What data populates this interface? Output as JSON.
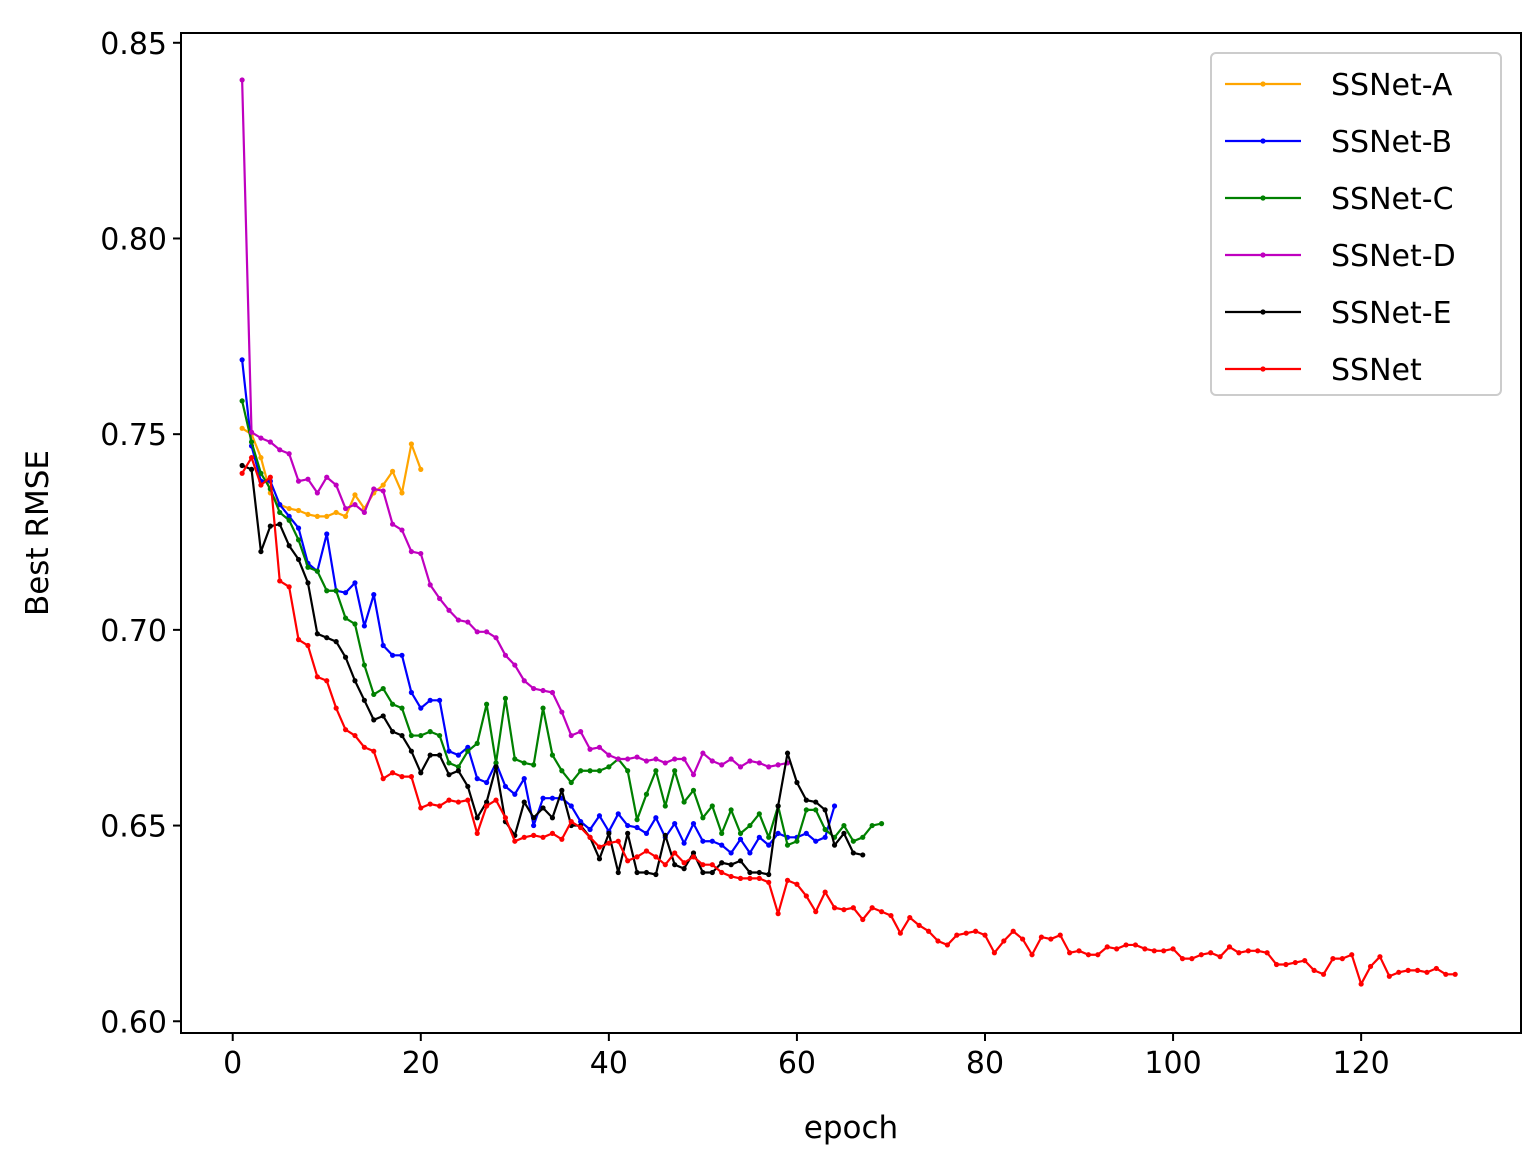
{
  "chart_data": {
    "type": "line",
    "title": "",
    "xlabel": "epoch",
    "ylabel": "Best RMSE",
    "xlim": [
      -5.5,
      137.0
    ],
    "ylim": [
      0.597,
      0.8525
    ],
    "xticks": [
      0,
      20,
      40,
      60,
      80,
      100,
      120
    ],
    "xtick_labels": [
      "0",
      "20",
      "40",
      "60",
      "80",
      "100",
      "120"
    ],
    "yticks": [
      0.6,
      0.65,
      0.7,
      0.75,
      0.8,
      0.85
    ],
    "ytick_labels": [
      "0.60",
      "0.65",
      "0.70",
      "0.75",
      "0.80",
      "0.85"
    ],
    "grid": false,
    "legend_position": "top-right",
    "series": [
      {
        "name": "SSNet-A",
        "color": "#ffa500",
        "x": [
          1,
          2,
          3,
          4,
          5,
          6,
          7,
          8,
          9,
          10,
          11,
          12,
          13,
          14,
          15,
          16,
          17,
          18,
          19,
          20
        ],
        "y": [
          0.7515,
          0.75,
          0.744,
          0.735,
          0.732,
          0.731,
          0.7305,
          0.7295,
          0.729,
          0.729,
          0.73,
          0.729,
          0.7345,
          0.731,
          0.735,
          0.737,
          0.7405,
          0.735,
          0.7475,
          0.741
        ]
      },
      {
        "name": "SSNet-B",
        "color": "#0000ff",
        "x": [
          1,
          2,
          3,
          4,
          5,
          6,
          7,
          8,
          9,
          10,
          11,
          12,
          13,
          14,
          15,
          16,
          17,
          18,
          19,
          20,
          21,
          22,
          23,
          24,
          25,
          26,
          27,
          28,
          29,
          30,
          31,
          32,
          33,
          34,
          35,
          36,
          37,
          38,
          39,
          40,
          41,
          42,
          43,
          44,
          45,
          46,
          47,
          48,
          49,
          50,
          51,
          52,
          53,
          54,
          55,
          56,
          57,
          58,
          59,
          60,
          61,
          62,
          63,
          64
        ],
        "y": [
          0.769,
          0.747,
          0.738,
          0.738,
          0.732,
          0.729,
          0.726,
          0.717,
          0.715,
          0.7245,
          0.71,
          0.7095,
          0.712,
          0.701,
          0.709,
          0.696,
          0.6935,
          0.6935,
          0.684,
          0.68,
          0.682,
          0.682,
          0.669,
          0.668,
          0.67,
          0.662,
          0.661,
          0.666,
          0.66,
          0.658,
          0.662,
          0.65,
          0.657,
          0.657,
          0.657,
          0.655,
          0.651,
          0.649,
          0.6525,
          0.6485,
          0.653,
          0.65,
          0.6495,
          0.648,
          0.652,
          0.647,
          0.6505,
          0.6455,
          0.6505,
          0.646,
          0.646,
          0.645,
          0.643,
          0.6465,
          0.643,
          0.647,
          0.645,
          0.648,
          0.647,
          0.647,
          0.648,
          0.646,
          0.647,
          0.655
        ]
      },
      {
        "name": "SSNet-C",
        "color": "#008000",
        "x": [
          1,
          2,
          3,
          4,
          5,
          6,
          7,
          8,
          9,
          10,
          11,
          12,
          13,
          14,
          15,
          16,
          17,
          18,
          19,
          20,
          21,
          22,
          23,
          24,
          25,
          26,
          27,
          28,
          29,
          30,
          31,
          32,
          33,
          34,
          35,
          36,
          37,
          38,
          39,
          40,
          41,
          42,
          43,
          44,
          45,
          46,
          47,
          48,
          49,
          50,
          51,
          52,
          53,
          54,
          55,
          56,
          57,
          58,
          59,
          60,
          61,
          62,
          63,
          64,
          65,
          66,
          67,
          68,
          69
        ],
        "y": [
          0.7585,
          0.748,
          0.74,
          0.736,
          0.73,
          0.728,
          0.723,
          0.716,
          0.715,
          0.71,
          0.71,
          0.703,
          0.7015,
          0.691,
          0.6835,
          0.685,
          0.681,
          0.68,
          0.673,
          0.673,
          0.674,
          0.673,
          0.666,
          0.665,
          0.669,
          0.671,
          0.681,
          0.666,
          0.6825,
          0.667,
          0.666,
          0.6655,
          0.68,
          0.668,
          0.664,
          0.661,
          0.664,
          0.664,
          0.664,
          0.665,
          0.667,
          0.664,
          0.6515,
          0.658,
          0.664,
          0.655,
          0.664,
          0.656,
          0.659,
          0.652,
          0.655,
          0.648,
          0.654,
          0.648,
          0.65,
          0.653,
          0.647,
          0.655,
          0.645,
          0.646,
          0.654,
          0.654,
          0.649,
          0.647,
          0.65,
          0.646,
          0.647,
          0.65,
          0.6505
        ]
      },
      {
        "name": "SSNet-D",
        "color": "#bf00bf",
        "x": [
          1,
          2,
          3,
          4,
          5,
          6,
          7,
          8,
          9,
          10,
          11,
          12,
          13,
          14,
          15,
          16,
          17,
          18,
          19,
          20,
          21,
          22,
          23,
          24,
          25,
          26,
          27,
          28,
          29,
          30,
          31,
          32,
          33,
          34,
          35,
          36,
          37,
          38,
          39,
          40,
          41,
          42,
          43,
          44,
          45,
          46,
          47,
          48,
          49,
          50,
          51,
          52,
          53,
          54,
          55,
          56,
          57,
          58,
          59
        ],
        "y": [
          0.8405,
          0.7505,
          0.749,
          0.748,
          0.746,
          0.745,
          0.738,
          0.7385,
          0.735,
          0.739,
          0.737,
          0.731,
          0.732,
          0.73,
          0.736,
          0.7355,
          0.727,
          0.7255,
          0.72,
          0.7195,
          0.7115,
          0.708,
          0.705,
          0.7025,
          0.702,
          0.6995,
          0.6995,
          0.698,
          0.6935,
          0.691,
          0.687,
          0.685,
          0.6845,
          0.684,
          0.679,
          0.673,
          0.674,
          0.6695,
          0.67,
          0.668,
          0.667,
          0.667,
          0.6675,
          0.6665,
          0.667,
          0.666,
          0.667,
          0.667,
          0.663,
          0.6685,
          0.6665,
          0.6655,
          0.667,
          0.665,
          0.6665,
          0.666,
          0.665,
          0.6655,
          0.666
        ]
      },
      {
        "name": "SSNet-E",
        "color": "#000000",
        "x": [
          1,
          2,
          3,
          4,
          5,
          6,
          7,
          8,
          9,
          10,
          11,
          12,
          13,
          14,
          15,
          16,
          17,
          18,
          19,
          20,
          21,
          22,
          23,
          24,
          25,
          26,
          27,
          28,
          29,
          30,
          31,
          32,
          33,
          34,
          35,
          36,
          37,
          38,
          39,
          40,
          41,
          42,
          43,
          44,
          45,
          46,
          47,
          48,
          49,
          50,
          51,
          52,
          53,
          54,
          55,
          56,
          57,
          58,
          59,
          60,
          61,
          62,
          63,
          64,
          65,
          66,
          67
        ],
        "y": [
          0.742,
          0.741,
          0.72,
          0.7265,
          0.727,
          0.7215,
          0.718,
          0.712,
          0.699,
          0.698,
          0.697,
          0.693,
          0.687,
          0.682,
          0.677,
          0.678,
          0.674,
          0.673,
          0.669,
          0.6635,
          0.668,
          0.668,
          0.663,
          0.664,
          0.66,
          0.652,
          0.656,
          0.665,
          0.651,
          0.6475,
          0.656,
          0.652,
          0.6545,
          0.652,
          0.659,
          0.65,
          0.65,
          0.647,
          0.6415,
          0.648,
          0.638,
          0.648,
          0.638,
          0.638,
          0.6375,
          0.6475,
          0.64,
          0.639,
          0.643,
          0.638,
          0.638,
          0.6405,
          0.64,
          0.641,
          0.638,
          0.638,
          0.6375,
          0.655,
          0.6685,
          0.661,
          0.6565,
          0.656,
          0.654,
          0.645,
          0.648,
          0.643,
          0.6425
        ]
      },
      {
        "name": "SSNet",
        "color": "#ff0000",
        "x": [
          1,
          2,
          3,
          4,
          5,
          6,
          7,
          8,
          9,
          10,
          11,
          12,
          13,
          14,
          15,
          16,
          17,
          18,
          19,
          20,
          21,
          22,
          23,
          24,
          25,
          26,
          27,
          28,
          29,
          30,
          31,
          32,
          33,
          34,
          35,
          36,
          37,
          38,
          39,
          40,
          41,
          42,
          43,
          44,
          45,
          46,
          47,
          48,
          49,
          50,
          51,
          52,
          53,
          54,
          55,
          56,
          57,
          58,
          59,
          60,
          61,
          62,
          63,
          64,
          65,
          66,
          67,
          68,
          69,
          70,
          71,
          72,
          73,
          74,
          75,
          76,
          77,
          78,
          79,
          80,
          81,
          82,
          83,
          84,
          85,
          86,
          87,
          88,
          89,
          90,
          91,
          92,
          93,
          94,
          95,
          96,
          97,
          98,
          99,
          100,
          101,
          102,
          103,
          104,
          105,
          106,
          107,
          108,
          109,
          110,
          111,
          112,
          113,
          114,
          115,
          116,
          117,
          118,
          119,
          120,
          121,
          122,
          123,
          124,
          125,
          126,
          127,
          128,
          129,
          130
        ],
        "y": [
          0.74,
          0.744,
          0.737,
          0.739,
          0.7125,
          0.711,
          0.6975,
          0.696,
          0.688,
          0.687,
          0.68,
          0.6745,
          0.673,
          0.67,
          0.669,
          0.662,
          0.6635,
          0.6625,
          0.6625,
          0.6545,
          0.6555,
          0.655,
          0.6565,
          0.656,
          0.6565,
          0.648,
          0.655,
          0.6565,
          0.652,
          0.646,
          0.647,
          0.6475,
          0.647,
          0.648,
          0.6465,
          0.651,
          0.6495,
          0.647,
          0.6445,
          0.6455,
          0.646,
          0.641,
          0.642,
          0.6435,
          0.642,
          0.64,
          0.643,
          0.6405,
          0.642,
          0.64,
          0.64,
          0.638,
          0.637,
          0.6365,
          0.6365,
          0.6365,
          0.6355,
          0.6275,
          0.636,
          0.635,
          0.632,
          0.628,
          0.633,
          0.629,
          0.6285,
          0.629,
          0.626,
          0.629,
          0.628,
          0.627,
          0.6225,
          0.6265,
          0.6245,
          0.623,
          0.6205,
          0.6195,
          0.622,
          0.6225,
          0.623,
          0.622,
          0.6175,
          0.6205,
          0.623,
          0.621,
          0.617,
          0.6215,
          0.621,
          0.622,
          0.6175,
          0.618,
          0.617,
          0.617,
          0.619,
          0.6185,
          0.6195,
          0.6195,
          0.6185,
          0.618,
          0.618,
          0.6185,
          0.616,
          0.616,
          0.617,
          0.6175,
          0.6165,
          0.619,
          0.6175,
          0.618,
          0.618,
          0.6175,
          0.6145,
          0.6145,
          0.615,
          0.6155,
          0.613,
          0.612,
          0.616,
          0.616,
          0.617,
          0.6095,
          0.614,
          0.6165,
          0.6115,
          0.6125,
          0.613,
          0.613,
          0.6125,
          0.6135,
          0.612,
          0.612
        ]
      }
    ]
  }
}
